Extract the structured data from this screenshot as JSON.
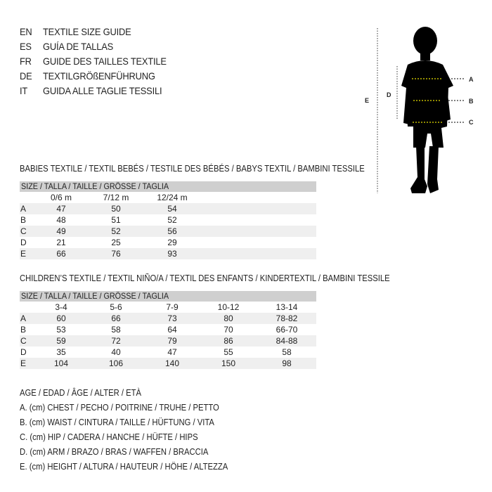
{
  "titles": [
    {
      "code": "EN",
      "text": "TEXTILE SIZE GUIDE"
    },
    {
      "code": "ES",
      "text": "GUÍA DE TALLAS"
    },
    {
      "code": "FR",
      "text": "GUIDE DES TAILLES TEXTILE"
    },
    {
      "code": "DE",
      "text": "TEXTILGRÖßENFÜHRUNG"
    },
    {
      "code": "IT",
      "text": "GUIDA ALLE TAGLIE TESSILI"
    }
  ],
  "figure": {
    "labels": {
      "a": "A",
      "b": "B",
      "c": "C",
      "d": "D",
      "e": "E"
    },
    "accent": "#e8e000"
  },
  "babies": {
    "heading": "BABIES TEXTILE / TEXTIL BEBÉS / TESTILE DES BÉBÉS / BABYS TEXTIL / BAMBINI TESSILE",
    "size_header": "SIZE / TALLA / TAILLE / GRÖSSE / TAGLIA",
    "columns": [
      "0/6 m",
      "7/12 m",
      "12/24 m"
    ],
    "rows": [
      {
        "label": "A",
        "values": [
          "47",
          "50",
          "54"
        ]
      },
      {
        "label": "B",
        "values": [
          "48",
          "51",
          "52"
        ]
      },
      {
        "label": "C",
        "values": [
          "49",
          "52",
          "56"
        ]
      },
      {
        "label": "D",
        "values": [
          "21",
          "25",
          "29"
        ]
      },
      {
        "label": "E",
        "values": [
          "66",
          "76",
          "93"
        ]
      }
    ]
  },
  "children": {
    "heading": "CHILDREN’S TEXTILE / TEXTIL NIÑO/A / TEXTIL DES ENFANTS / KINDERTEXTIL / BAMBINI TESSILE",
    "size_header": "SIZE / TALLA / TAILLE / GRÖSSE / TAGLIA",
    "columns": [
      "3-4",
      "5-6",
      "7-9",
      "10-12",
      "13-14"
    ],
    "rows": [
      {
        "label": "A",
        "values": [
          "60",
          "66",
          "73",
          "80",
          "78-82"
        ]
      },
      {
        "label": "B",
        "values": [
          "53",
          "58",
          "64",
          "70",
          "66-70"
        ]
      },
      {
        "label": "C",
        "values": [
          "59",
          "72",
          "79",
          "86",
          "84-88"
        ]
      },
      {
        "label": "D",
        "values": [
          "35",
          "40",
          "47",
          "55",
          "58"
        ]
      },
      {
        "label": "E",
        "values": [
          "104",
          "106",
          "140",
          "150",
          "98"
        ]
      }
    ]
  },
  "legend": [
    "AGE / EDAD / ÂGE / ALTER / ETÀ",
    "A. (cm) CHEST / PECHO / POITRINE / TRUHE / PETTO",
    "B. (cm) WAIST / CINTURA / TAILLE / HÜFTUNG / VITA",
    "C. (cm) HIP / CADERA / HANCHE / HÜFTE / HIPS",
    "D. (cm) ARM / BRAZO / BRAS / WAFFEN / BRACCIA",
    "E. (cm) HEIGHT / ALTURA / HAUTEUR / HÖHE / ALTEZZA"
  ]
}
